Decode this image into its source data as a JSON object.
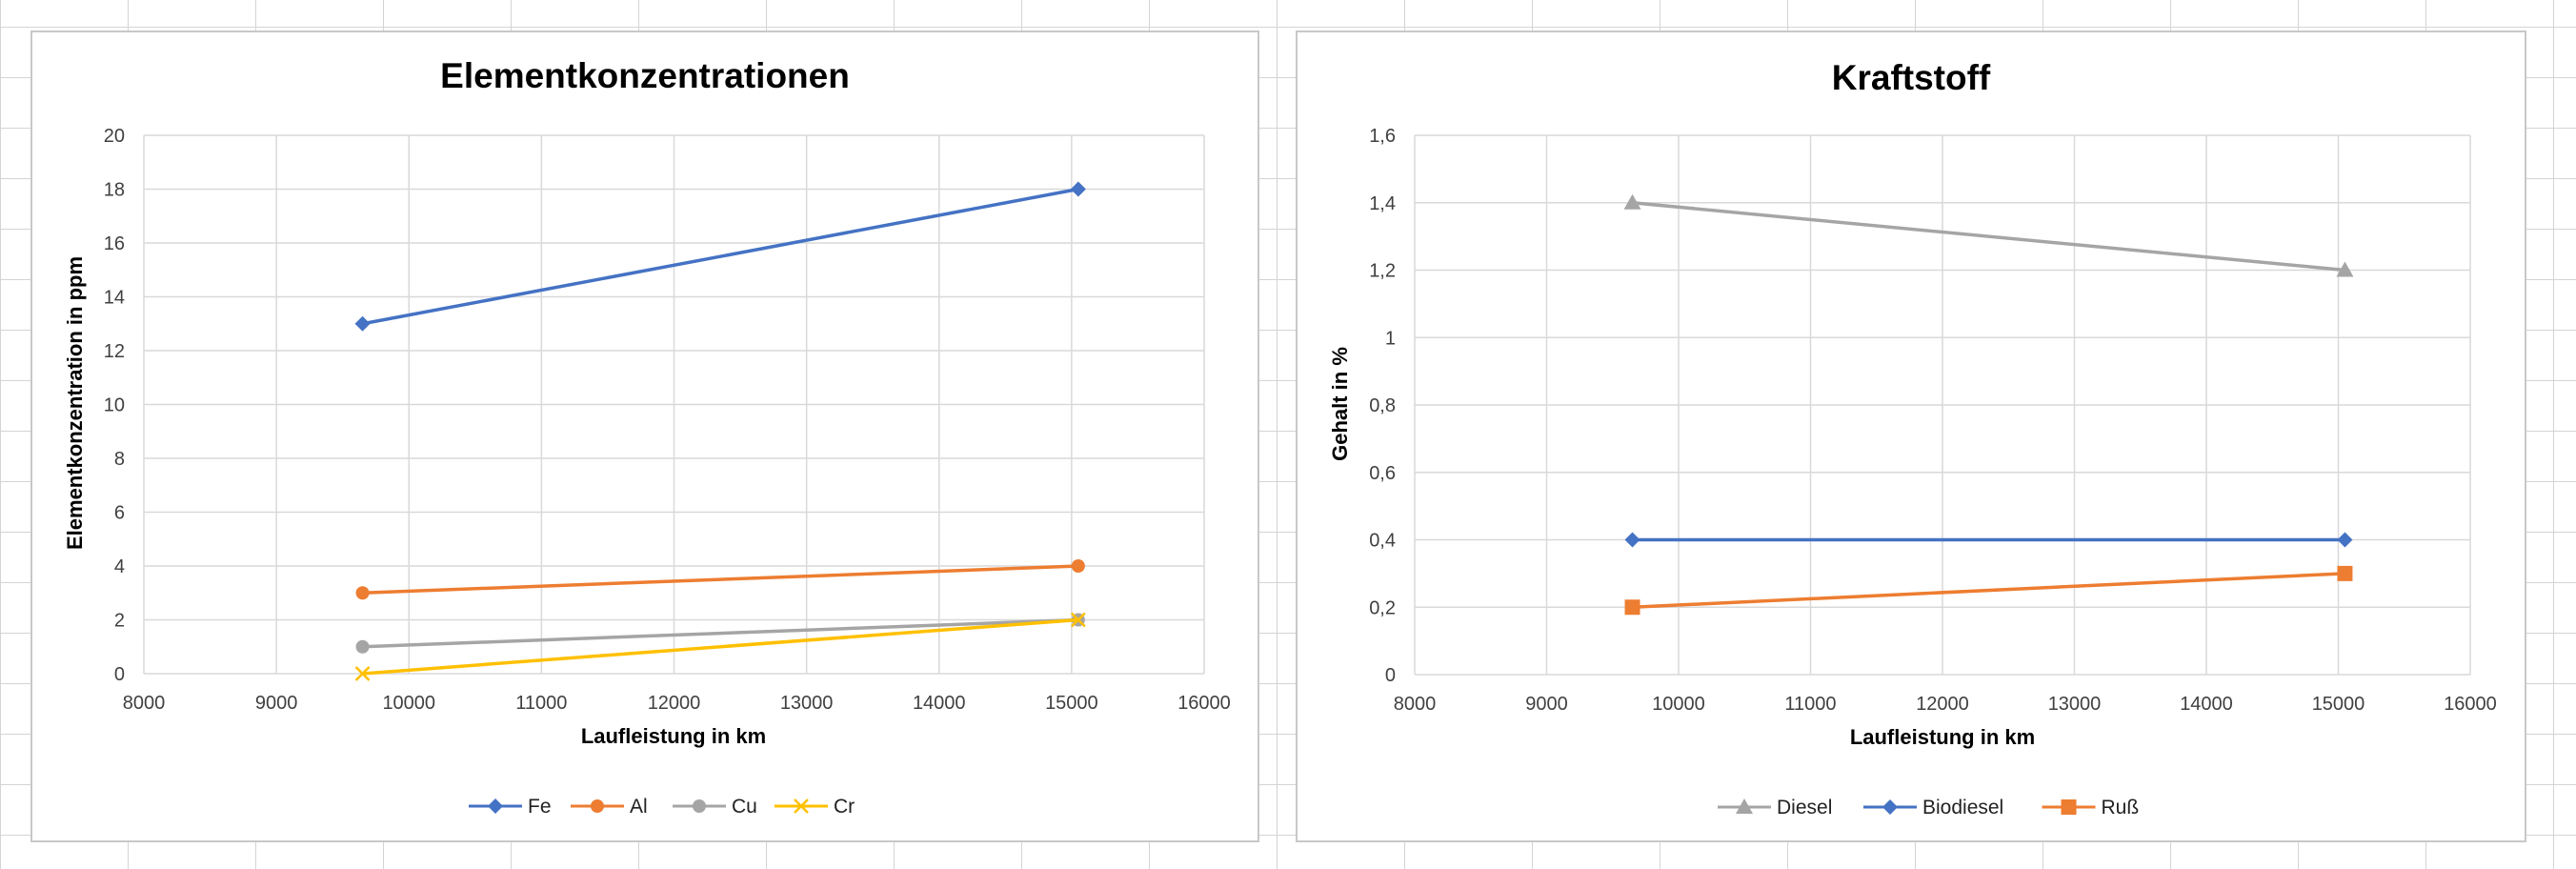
{
  "chart_data": [
    {
      "type": "line",
      "title": "Elementkonzentrationen",
      "xlabel": "Laufleistung in km",
      "ylabel": "Elementkonzentration in ppm",
      "xlim": [
        8000,
        16000
      ],
      "ylim": [
        0,
        20
      ],
      "x_ticks": [
        "8000",
        "9000",
        "10000",
        "11000",
        "12000",
        "13000",
        "14000",
        "15000",
        "16000"
      ],
      "y_ticks": [
        "0",
        "2",
        "4",
        "6",
        "8",
        "10",
        "12",
        "14",
        "16",
        "18",
        "20"
      ],
      "x": [
        9650,
        15050
      ],
      "grid": true,
      "legend_position": "bottom",
      "series": [
        {
          "name": "Fe",
          "values": [
            13,
            18
          ],
          "color": "#4472C4",
          "marker": "diamond"
        },
        {
          "name": "Al",
          "values": [
            3,
            4
          ],
          "color": "#ED7D31",
          "marker": "circle"
        },
        {
          "name": "Cu",
          "values": [
            1,
            2
          ],
          "color": "#A5A5A5",
          "marker": "circle"
        },
        {
          "name": "Cr",
          "values": [
            0,
            2
          ],
          "color": "#FFC000",
          "marker": "x"
        }
      ]
    },
    {
      "type": "line",
      "title": "Kraftstoff",
      "xlabel": "Laufleistung in km",
      "ylabel": "Gehalt in %",
      "xlim": [
        8000,
        16000
      ],
      "ylim": [
        0,
        1.6
      ],
      "x_ticks": [
        "8000",
        "9000",
        "10000",
        "11000",
        "12000",
        "13000",
        "14000",
        "15000",
        "16000"
      ],
      "y_ticks": [
        "0",
        "0,2",
        "0,4",
        "0,6",
        "0,8",
        "1",
        "1,2",
        "1,4",
        "1,6"
      ],
      "x": [
        9650,
        15050
      ],
      "grid": true,
      "legend_position": "bottom",
      "series": [
        {
          "name": "Diesel",
          "values": [
            1.4,
            1.2
          ],
          "color": "#A5A5A5",
          "marker": "triangle"
        },
        {
          "name": "Biodiesel",
          "values": [
            0.4,
            0.4
          ],
          "color": "#4472C4",
          "marker": "diamond"
        },
        {
          "name": "Ruß",
          "values": [
            0.2,
            0.3
          ],
          "color": "#ED7D31",
          "marker": "square"
        }
      ]
    }
  ]
}
